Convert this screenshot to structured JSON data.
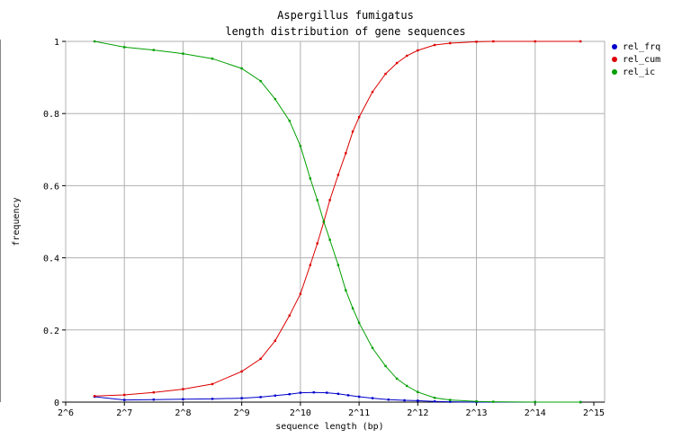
{
  "chart_data": {
    "type": "line",
    "title": "Aspergillus fumigatus",
    "subtitle": "length distribution of gene sequences",
    "xlabel": "sequence length (bp)",
    "ylabel": "frequency",
    "x_scale": "log2",
    "xlim": [
      64,
      32768
    ],
    "ylim": [
      0,
      1
    ],
    "x_ticks": [
      {
        "value": 64,
        "label": "2^6"
      },
      {
        "value": 128,
        "label": "2^7"
      },
      {
        "value": 256,
        "label": "2^8"
      },
      {
        "value": 512,
        "label": "2^9"
      },
      {
        "value": 1024,
        "label": "2^10"
      },
      {
        "value": 2048,
        "label": "2^11"
      },
      {
        "value": 4096,
        "label": "2^12"
      },
      {
        "value": 8192,
        "label": "2^13"
      },
      {
        "value": 16384,
        "label": "2^14"
      },
      {
        "value": 32768,
        "label": "2^15"
      }
    ],
    "y_ticks": [
      {
        "value": 0,
        "label": "0"
      },
      {
        "value": 0.2,
        "label": "0.2"
      },
      {
        "value": 0.4,
        "label": "0.4"
      },
      {
        "value": 0.6,
        "label": "0.6"
      },
      {
        "value": 0.8,
        "label": "0.8"
      },
      {
        "value": 1,
        "label": "1"
      }
    ],
    "grid": true,
    "legend_position": "right",
    "series": [
      {
        "name": "rel_frq",
        "color": "#0000cc",
        "points": [
          [
            90,
            0.015
          ],
          [
            128,
            0.006
          ],
          [
            181,
            0.007
          ],
          [
            256,
            0.008
          ],
          [
            362,
            0.009
          ],
          [
            512,
            0.011
          ],
          [
            640,
            0.014
          ],
          [
            760,
            0.018
          ],
          [
            900,
            0.022
          ],
          [
            1024,
            0.026
          ],
          [
            1200,
            0.027
          ],
          [
            1400,
            0.026
          ],
          [
            1600,
            0.023
          ],
          [
            1800,
            0.019
          ],
          [
            2048,
            0.015
          ],
          [
            2400,
            0.011
          ],
          [
            2900,
            0.007
          ],
          [
            3500,
            0.005
          ],
          [
            4096,
            0.004
          ],
          [
            5000,
            0.002
          ],
          [
            6000,
            0.001
          ],
          [
            8192,
            0.0
          ],
          [
            16384,
            0.0
          ],
          [
            28000,
            0.0
          ]
        ]
      },
      {
        "name": "rel_cum",
        "color": "#dd0000",
        "points": [
          [
            90,
            0.017
          ],
          [
            128,
            0.02
          ],
          [
            181,
            0.027
          ],
          [
            256,
            0.036
          ],
          [
            362,
            0.05
          ],
          [
            512,
            0.085
          ],
          [
            640,
            0.12
          ],
          [
            760,
            0.17
          ],
          [
            900,
            0.24
          ],
          [
            1024,
            0.3
          ],
          [
            1150,
            0.38
          ],
          [
            1250,
            0.44
          ],
          [
            1350,
            0.5
          ],
          [
            1450,
            0.56
          ],
          [
            1600,
            0.63
          ],
          [
            1750,
            0.69
          ],
          [
            1900,
            0.75
          ],
          [
            2048,
            0.79
          ],
          [
            2400,
            0.86
          ],
          [
            2800,
            0.91
          ],
          [
            3200,
            0.94
          ],
          [
            3600,
            0.96
          ],
          [
            4096,
            0.975
          ],
          [
            5000,
            0.99
          ],
          [
            6000,
            0.995
          ],
          [
            8192,
            0.999
          ],
          [
            10000,
            1.0
          ],
          [
            16384,
            1.0
          ],
          [
            28000,
            1.0
          ]
        ]
      },
      {
        "name": "rel_ic",
        "color": "#00a000",
        "points": [
          [
            90,
            1.0
          ],
          [
            128,
            0.984
          ],
          [
            181,
            0.976
          ],
          [
            256,
            0.966
          ],
          [
            362,
            0.952
          ],
          [
            512,
            0.925
          ],
          [
            640,
            0.89
          ],
          [
            760,
            0.84
          ],
          [
            900,
            0.78
          ],
          [
            1024,
            0.71
          ],
          [
            1150,
            0.62
          ],
          [
            1250,
            0.56
          ],
          [
            1350,
            0.5
          ],
          [
            1450,
            0.45
          ],
          [
            1600,
            0.38
          ],
          [
            1750,
            0.31
          ],
          [
            1900,
            0.26
          ],
          [
            2048,
            0.22
          ],
          [
            2400,
            0.15
          ],
          [
            2800,
            0.1
          ],
          [
            3200,
            0.065
          ],
          [
            3600,
            0.045
          ],
          [
            4096,
            0.028
          ],
          [
            5000,
            0.012
          ],
          [
            6000,
            0.006
          ],
          [
            8192,
            0.002
          ],
          [
            10000,
            0.001
          ],
          [
            16384,
            0.0
          ],
          [
            28000,
            0.0
          ]
        ]
      }
    ]
  }
}
